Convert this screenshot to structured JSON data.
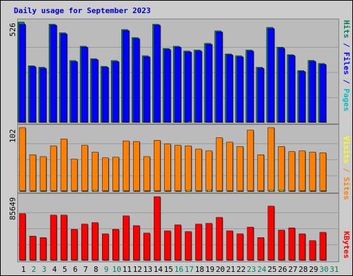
{
  "title": "Daily usage for September 2023",
  "colors": {
    "hits": "#00805c",
    "files": "#0000ff",
    "pages": "#00c0c0",
    "visits": "#ffff00",
    "sites": "#ff8000",
    "kbytes": "#ff0000",
    "weekend_label": "#00805c",
    "weekday_label": "#000000"
  },
  "legend": {
    "top": [
      {
        "text": "Hits",
        "color": "#00805c"
      },
      {
        "text": " / ",
        "color": "#0000ff"
      },
      {
        "text": "Files",
        "color": "#0000ff"
      },
      {
        "text": " / ",
        "color": "#0000ff"
      },
      {
        "text": "Pages",
        "color": "#00c0c0"
      }
    ],
    "mid": [
      {
        "text": "Visits",
        "color": "#ffff00"
      },
      {
        "text": " / ",
        "color": "#ff8000"
      },
      {
        "text": "Sites",
        "color": "#ff8000"
      }
    ],
    "bot": [
      {
        "text": "KBytes",
        "color": "#ff0000"
      }
    ]
  },
  "chart_data": {
    "type": "bar",
    "title": "Daily usage for September 2023",
    "categories": [
      "1",
      "2",
      "3",
      "4",
      "5",
      "6",
      "7",
      "8",
      "9",
      "10",
      "11",
      "12",
      "13",
      "14",
      "15",
      "16",
      "17",
      "18",
      "19",
      "20",
      "21",
      "22",
      "23",
      "24",
      "25",
      "26",
      "27",
      "28",
      "29",
      "30",
      "31"
    ],
    "weekend_days": [
      "2",
      "3",
      "9",
      "10",
      "16",
      "17",
      "23",
      "24",
      "30",
      "31"
    ],
    "panels": [
      {
        "name": "hits-files-pages",
        "ymax_label": "526",
        "ymax": 526,
        "series": [
          {
            "name": "Hits",
            "values": [
              526,
              298,
              290,
              515,
              470,
              325,
              400,
              335,
              295,
              325,
              487,
              445,
              350,
              515,
              388,
              400,
              375,
              380,
              415,
              480,
              360,
              350,
              380,
              290,
              498,
              395,
              356,
              273,
              326,
              310,
              0
            ]
          },
          {
            "name": "Files",
            "values": [
              514,
              293,
              285,
              510,
              465,
              320,
              395,
              330,
              290,
              320,
              482,
              440,
              345,
              510,
              383,
              395,
              370,
              375,
              410,
              475,
              355,
              345,
              375,
              285,
              493,
              390,
              351,
              268,
              321,
              305,
              0
            ]
          },
          {
            "name": "Pages",
            "values": [
              5,
              5,
              5,
              5,
              5,
              5,
              5,
              5,
              5,
              5,
              5,
              5,
              5,
              5,
              5,
              5,
              8,
              5,
              5,
              5,
              5,
              5,
              5,
              5,
              5,
              5,
              5,
              5,
              5,
              5,
              0
            ]
          }
        ]
      },
      {
        "name": "visits-sites",
        "ymax_label": "102",
        "ymax": 102,
        "series": [
          {
            "name": "Visits",
            "values": [
              102,
              59,
              56,
              73,
              84,
              52,
              74,
              63,
              54,
              55,
              81,
              80,
              56,
              82,
              76,
              74,
              73,
              68,
              65,
              86,
              79,
              72,
              98,
              59,
              102,
              72,
              64,
              65,
              63,
              62,
              0
            ]
          },
          {
            "name": "Sites",
            "values": [
              2,
              2,
              2,
              2,
              2,
              2,
              2,
              3,
              2,
              2,
              2,
              2,
              2,
              2,
              2,
              2,
              3,
              2,
              3,
              2,
              2,
              2,
              2,
              2,
              3,
              3,
              2,
              2,
              2,
              2,
              0
            ]
          }
        ]
      },
      {
        "name": "kbytes",
        "ymax_label": "85649",
        "ymax": 85649,
        "series": [
          {
            "name": "KBytes",
            "values": [
              63000,
              33000,
              31000,
              61000,
              61000,
              42000,
              49000,
              51000,
              36000,
              42000,
              60000,
              47000,
              37000,
              85649,
              40000,
              48000,
              39000,
              49000,
              50000,
              58000,
              40000,
              36000,
              45000,
              31000,
              73000,
              41000,
              44000,
              36000,
              27000,
              38000,
              0
            ]
          }
        ]
      }
    ]
  }
}
